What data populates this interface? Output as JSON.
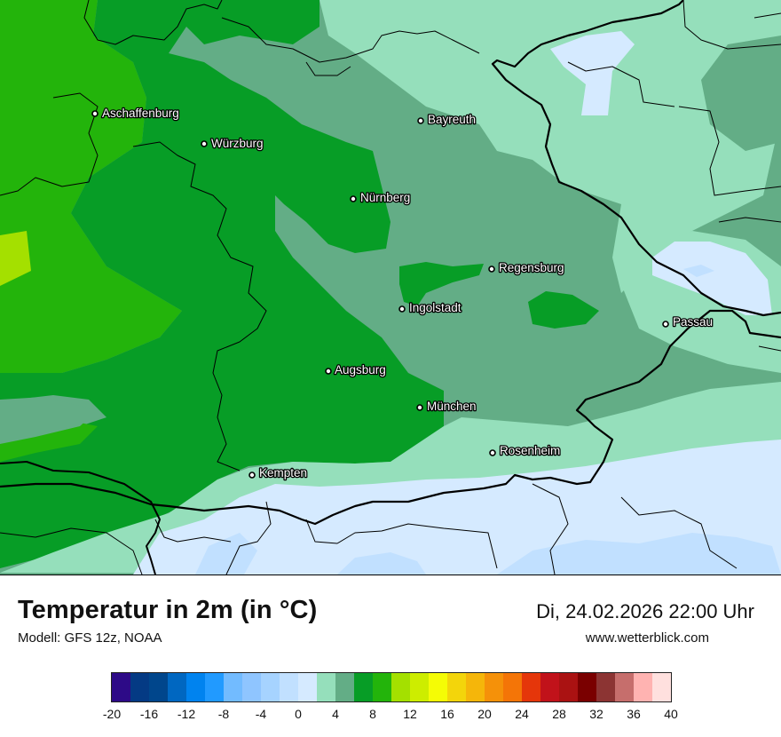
{
  "title": "Temperatur in 2m (in °C)",
  "model": "Modell: GFS 12z, NOAA",
  "datetime": "Di, 24.02.2026 22:00 Uhr",
  "website": "www.wetterblick.com",
  "cities": [
    {
      "name": "Aschaffenburg"
    },
    {
      "name": "Würzburg"
    },
    {
      "name": "Bayreuth"
    },
    {
      "name": "Nürnberg"
    },
    {
      "name": "Regensburg"
    },
    {
      "name": "Ingolstadt"
    },
    {
      "name": "Passau"
    },
    {
      "name": "Augsburg"
    },
    {
      "name": "München"
    },
    {
      "name": "Rosenheim"
    },
    {
      "name": "Kempten"
    }
  ],
  "colors": {
    "t_8_10": "#079d26",
    "t_6_8": "#23b40b",
    "t_4_6": "#63ad86",
    "t_2_4": "#95dfbb",
    "t_0_2": "#d5eaff",
    "t_m2_0": "#c1e0ff",
    "t_10_12": "#a4e000"
  },
  "legend": {
    "colors": [
      "#2d0a87",
      "#043a84",
      "#00468c",
      "#0067c1",
      "#0083ef",
      "#219aff",
      "#72bbff",
      "#8fc5ff",
      "#a6d3ff",
      "#c1e0ff",
      "#d5eaff",
      "#95dfbb",
      "#63ad86",
      "#079d26",
      "#23b40b",
      "#a4e000",
      "#cded00",
      "#f5fc05",
      "#f3d50b",
      "#f5b60a",
      "#f59109",
      "#f47507",
      "#e5360a",
      "#c1121a",
      "#aa1212",
      "#7a0000",
      "#8c3433",
      "#c66e6c",
      "#ffb3b1",
      "#ffe0de"
    ],
    "ticks": [
      "-20",
      "-16",
      "-12",
      "-8",
      "-4",
      "0",
      "4",
      "8",
      "12",
      "16",
      "20",
      "24",
      "28",
      "32",
      "36",
      "40"
    ]
  }
}
